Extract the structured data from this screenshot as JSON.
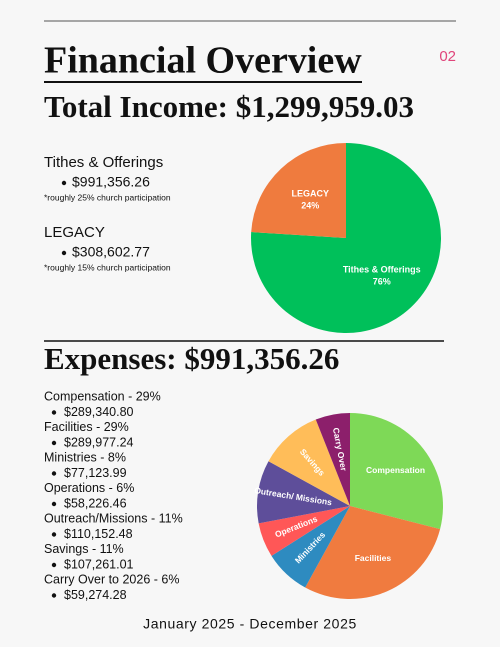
{
  "header": {
    "title": "Financial Overview",
    "page_number": "02"
  },
  "income": {
    "heading": "Total Income:  $1,299,959.03",
    "items": [
      {
        "name": "Tithes & Offerings",
        "amount": "$991,356.26",
        "note": "*roughly 25% church participation"
      },
      {
        "name": "LEGACY",
        "amount": "$308,602.77",
        "note": "*roughly 15% church participation"
      }
    ]
  },
  "expenses": {
    "heading": "Expenses:  $991,356.26",
    "items": [
      {
        "name": "Compensation - 29%",
        "amount": "$289,340.80"
      },
      {
        "name": "Facilities - 29%",
        "amount": "$289,977.24"
      },
      {
        "name": "Ministries - 8%",
        "amount": "$77,123.99"
      },
      {
        "name": "Operations - 6%",
        "amount": "$58,226.46"
      },
      {
        "name": "Outreach/Missions - 11%",
        "amount": "$110,152.48"
      },
      {
        "name": "Savings - 11%",
        "amount": "$107,261.01"
      },
      {
        "name": "Carry Over to 2026 - 6%",
        "amount": "$59,274.28"
      }
    ]
  },
  "footer": "January 2025 - December 2025",
  "chart_data": [
    {
      "type": "pie",
      "categories": [
        "Tithes & Offerings",
        "LEGACY"
      ],
      "values": [
        76,
        24
      ],
      "value_labels": [
        "76%",
        "24%"
      ],
      "colors": [
        "#00c05a",
        "#ef7b3e"
      ]
    },
    {
      "type": "pie",
      "categories": [
        "Compensation",
        "Facilities",
        "Ministries",
        "Operations",
        "Outreach/ Missions",
        "Savings",
        "Carry Over"
      ],
      "values": [
        29,
        29,
        8,
        6,
        11,
        11,
        6
      ],
      "colors": [
        "#7ed957",
        "#f07b3f",
        "#2e8bc0",
        "#ff5757",
        "#5e4e9a",
        "#ffbd59",
        "#8c1f6b"
      ]
    }
  ]
}
